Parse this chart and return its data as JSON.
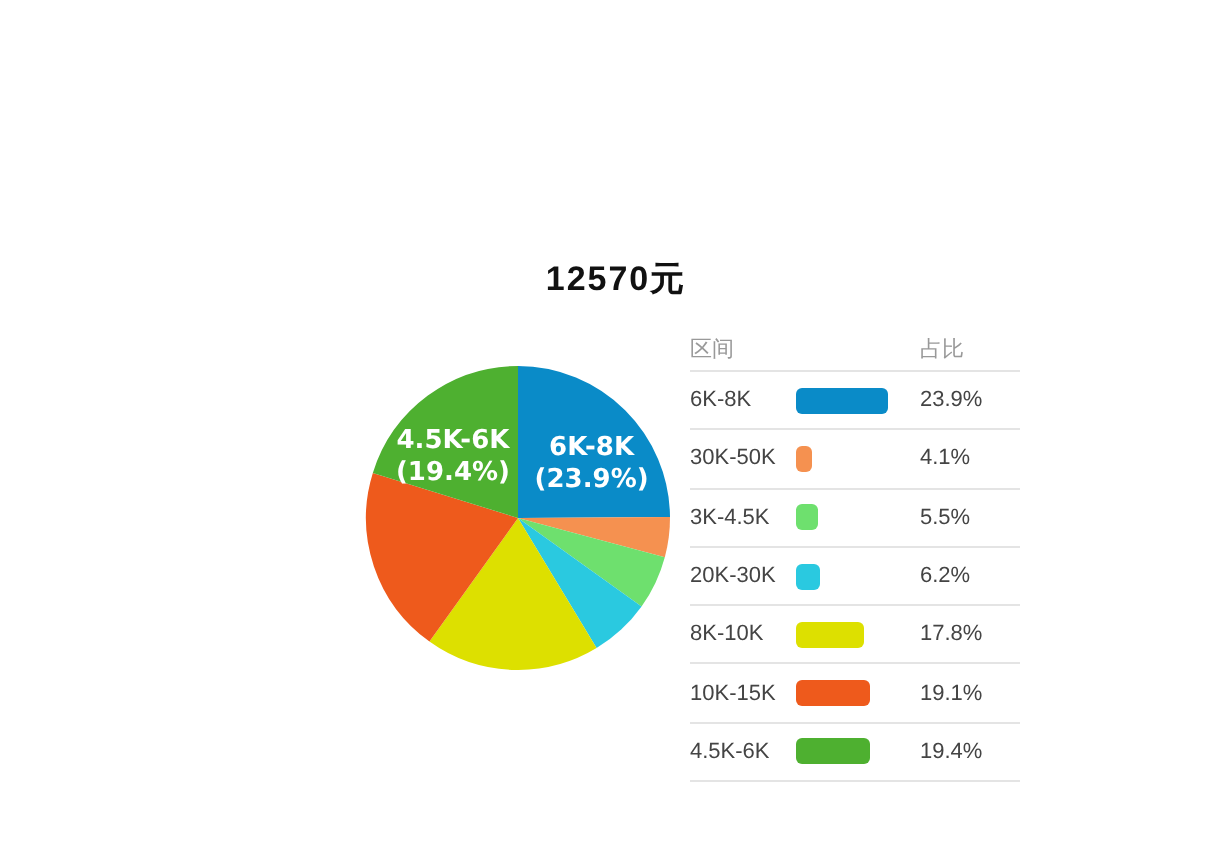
{
  "chart_data": {
    "type": "pie",
    "title": "12570元",
    "legend_title": "区间",
    "ylabel": "占比",
    "categories": [
      "6K-8K",
      "30K-50K",
      "3K-4.5K",
      "20K-30K",
      "8K-10K",
      "10K-15K",
      "4.5K-6K"
    ],
    "values": [
      23.9,
      4.1,
      5.5,
      6.2,
      17.8,
      19.1,
      19.4
    ],
    "colors": [
      "#0a8bc8",
      "#f59150",
      "#6ee06e",
      "#2ac9e0",
      "#dde000",
      "#ee5a1c",
      "#4eb030"
    ],
    "value_labels": [
      "23.9%",
      "4.1%",
      "5.5%",
      "6.2%",
      "17.8%",
      "19.1%",
      "19.4%"
    ],
    "annotations": [
      {
        "text": "6K-8K",
        "x": "6K-8K"
      },
      {
        "text": "(23.9%)",
        "x": "6K-8K"
      },
      {
        "text": "4.5K-6K",
        "x": "4.5K-6K"
      },
      {
        "text": "(19.4%)",
        "x": "4.5K-6K"
      }
    ],
    "legend": "right"
  }
}
